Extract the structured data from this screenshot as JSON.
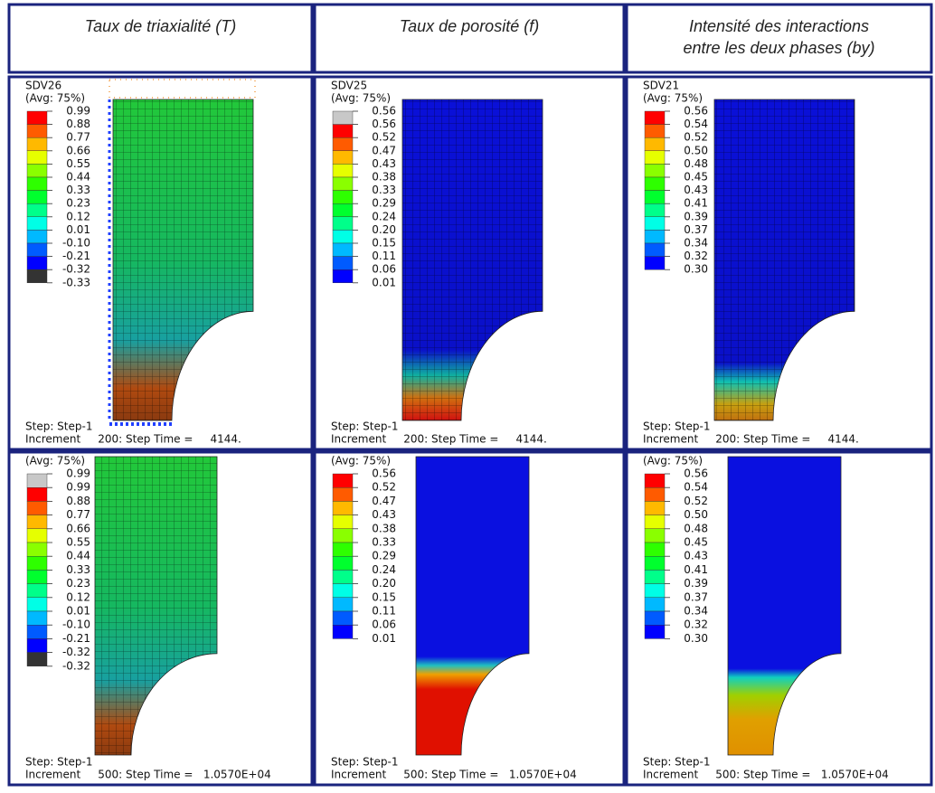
{
  "header": {
    "titles": [
      [
        "Taux de triaxialité (T)"
      ],
      [
        "Taux de porosité (f)"
      ],
      [
        "Intensité des interactions",
        "entre les deux phases (by)"
      ]
    ]
  },
  "panels": [
    {
      "variable": "SDV26",
      "avg": "(Avg: 75%)",
      "legend": [
        "0.99",
        "0.88",
        "0.77",
        "0.66",
        "0.55",
        "0.44",
        "0.33",
        "0.23",
        "0.12",
        "0.01",
        "-0.10",
        "-0.21",
        "-0.32",
        "-0.33"
      ],
      "step": "Step: Step-1",
      "increment": "Increment     200: Step Time =     4144."
    },
    {
      "variable": "SDV25",
      "avg": "(Avg: 75%)",
      "legend": [
        "0.56",
        "0.56",
        "0.52",
        "0.47",
        "0.43",
        "0.38",
        "0.33",
        "0.29",
        "0.24",
        "0.20",
        "0.15",
        "0.11",
        "0.06",
        "0.01"
      ],
      "step": "Step: Step-1",
      "increment": "Increment     200: Step Time =     4144."
    },
    {
      "variable": "SDV21",
      "avg": "(Avg: 75%)",
      "legend": [
        "0.56",
        "0.54",
        "0.52",
        "0.50",
        "0.48",
        "0.45",
        "0.43",
        "0.41",
        "0.39",
        "0.37",
        "0.34",
        "0.32",
        "0.30"
      ],
      "step": "Step: Step-1",
      "increment": "Increment     200: Step Time =     4144."
    },
    {
      "avg": "(Avg: 75%)",
      "legend": [
        "0.99",
        "0.99",
        "0.88",
        "0.77",
        "0.66",
        "0.55",
        "0.44",
        "0.33",
        "0.23",
        "0.12",
        "0.01",
        "-0.10",
        "-0.21",
        "-0.32",
        "-0.32"
      ],
      "step": "Step: Step-1",
      "increment": "Increment     500: Step Time =   1.0570E+04"
    },
    {
      "avg": "(Avg: 75%)",
      "legend": [
        "0.56",
        "0.52",
        "0.47",
        "0.43",
        "0.38",
        "0.33",
        "0.29",
        "0.24",
        "0.20",
        "0.15",
        "0.11",
        "0.06",
        "0.01"
      ],
      "step": "Step: Step-1",
      "increment": "Increment     500: Step Time =   1.0570E+04"
    },
    {
      "avg": "(Avg: 75%)",
      "legend": [
        "0.56",
        "0.54",
        "0.52",
        "0.50",
        "0.48",
        "0.45",
        "0.43",
        "0.41",
        "0.39",
        "0.37",
        "0.34",
        "0.32",
        "0.30"
      ],
      "step": "Step: Step-1",
      "increment": "Increment     500: Step Time =   1.0570E+04"
    }
  ]
}
